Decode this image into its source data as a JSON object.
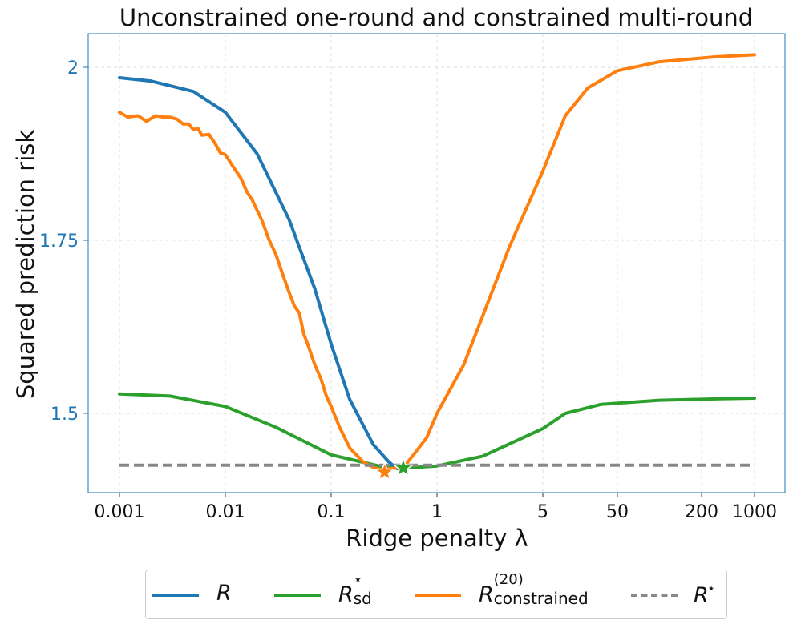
{
  "chart_data": {
    "type": "line",
    "title": "Unconstrained one-round and constrained multi-round",
    "xlabel": "Ridge penalty λ",
    "ylabel": "Squared prediction risk",
    "x_scale": "log",
    "xlim": [
      0.001,
      1000
    ],
    "ylim": [
      1.39,
      2.05
    ],
    "x_ticks": [
      0.001,
      0.01,
      0.1,
      1,
      5,
      50,
      200,
      1000
    ],
    "x_tick_labels": [
      "0.001",
      "0.01",
      "0.1",
      "1",
      "5",
      "50",
      "200",
      "1000"
    ],
    "y_ticks": [
      1.5,
      1.75,
      2
    ],
    "y_tick_labels": [
      "1.5",
      "1.75",
      "2"
    ],
    "grid": true,
    "legend_position": "below",
    "series": [
      {
        "name": "R",
        "color": "#1f77b4",
        "x": [
          0.001,
          0.002,
          0.005,
          0.01,
          0.02,
          0.04,
          0.07,
          0.1,
          0.15,
          0.25,
          0.35,
          0.42
        ],
        "y": [
          1.985,
          1.98,
          1.965,
          1.935,
          1.875,
          1.78,
          1.68,
          1.6,
          1.52,
          1.455,
          1.43,
          1.42
        ]
      },
      {
        "name": "R_sd*",
        "color": "#2ca02c",
        "x": [
          0.001,
          0.003,
          0.01,
          0.03,
          0.1,
          0.3,
          0.5,
          1,
          2,
          5,
          10,
          30,
          100,
          300,
          1000
        ],
        "y": [
          1.528,
          1.525,
          1.51,
          1.48,
          1.44,
          1.423,
          1.421,
          1.424,
          1.438,
          1.478,
          1.5,
          1.513,
          1.519,
          1.521,
          1.522
        ]
      },
      {
        "name": "R_constrained^(20)",
        "color": "#ff7f0e",
        "x": [
          0.001,
          0.0012,
          0.0015,
          0.0018,
          0.0022,
          0.0026,
          0.003,
          0.0035,
          0.004,
          0.0045,
          0.005,
          0.0055,
          0.006,
          0.007,
          0.008,
          0.009,
          0.01,
          0.012,
          0.014,
          0.016,
          0.018,
          0.022,
          0.026,
          0.03,
          0.035,
          0.04,
          0.045,
          0.05,
          0.055,
          0.06,
          0.07,
          0.08,
          0.09,
          0.1,
          0.12,
          0.15,
          0.2,
          0.25,
          0.3,
          0.35,
          0.42,
          0.5,
          0.6,
          0.8,
          1,
          1.5,
          2,
          3,
          5,
          10,
          20,
          50,
          100,
          300,
          1000
        ],
        "y": [
          1.935,
          1.928,
          1.93,
          1.922,
          1.93,
          1.928,
          1.928,
          1.925,
          1.918,
          1.918,
          1.91,
          1.912,
          1.902,
          1.903,
          1.89,
          1.876,
          1.874,
          1.855,
          1.84,
          1.82,
          1.808,
          1.78,
          1.75,
          1.73,
          1.7,
          1.675,
          1.655,
          1.645,
          1.615,
          1.6,
          1.57,
          1.55,
          1.525,
          1.51,
          1.48,
          1.45,
          1.43,
          1.422,
          1.418,
          1.42,
          1.421,
          1.425,
          1.44,
          1.465,
          1.5,
          1.57,
          1.64,
          1.74,
          1.85,
          1.93,
          1.97,
          1.995,
          2.008,
          2.015,
          2.018
        ]
      },
      {
        "name": "R*",
        "color": "#888888",
        "dashed": true,
        "x": [
          0.001,
          1000
        ],
        "y": [
          1.425,
          1.425
        ]
      }
    ],
    "markers": [
      {
        "series": "R_constrained^(20)",
        "x": 0.32,
        "y": 1.415,
        "shape": "star",
        "color": "#ff7f0e"
      },
      {
        "series": "R_sd*",
        "x": 0.48,
        "y": 1.421,
        "shape": "star",
        "color": "#2ca02c"
      }
    ]
  },
  "legend": {
    "items": [
      {
        "main": "R",
        "color": "#1f77b4"
      },
      {
        "main": "R",
        "sub": "sd",
        "sup": "⋆",
        "color": "#2ca02c"
      },
      {
        "main": "R",
        "sub": "constrained",
        "sup": "(20)",
        "color": "#ff7f0e"
      },
      {
        "main": "R",
        "sup": "⋆",
        "color": "#888888",
        "dashed": true
      }
    ]
  }
}
